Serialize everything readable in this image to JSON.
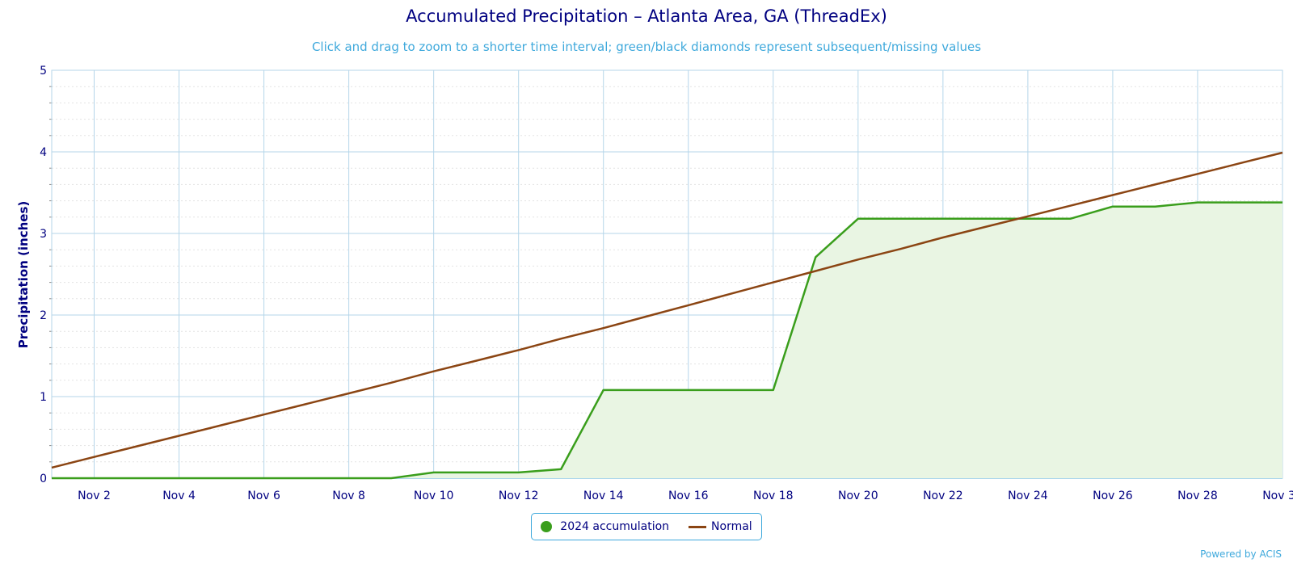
{
  "chart_data": {
    "type": "area",
    "title": "Accumulated Precipitation – Atlanta Area, GA (ThreadEx)",
    "subtitle": "Click and drag to zoom to a shorter time interval; green/black diamonds represent subsequent/missing values",
    "ylabel": "Precipitation (inches)",
    "ylim": [
      0,
      5
    ],
    "yticks": [
      "0",
      "1",
      "2",
      "3",
      "4",
      "5"
    ],
    "xlim": [
      1,
      30
    ],
    "xticks": [
      {
        "day": 2,
        "label": "Nov 2"
      },
      {
        "day": 4,
        "label": "Nov 4"
      },
      {
        "day": 6,
        "label": "Nov 6"
      },
      {
        "day": 8,
        "label": "Nov 8"
      },
      {
        "day": 10,
        "label": "Nov 10"
      },
      {
        "day": 12,
        "label": "Nov 12"
      },
      {
        "day": 14,
        "label": "Nov 14"
      },
      {
        "day": 16,
        "label": "Nov 16"
      },
      {
        "day": 18,
        "label": "Nov 18"
      },
      {
        "day": 20,
        "label": "Nov 20"
      },
      {
        "day": 22,
        "label": "Nov 22"
      },
      {
        "day": 24,
        "label": "Nov 24"
      },
      {
        "day": 26,
        "label": "Nov 26"
      },
      {
        "day": 28,
        "label": "Nov 28"
      },
      {
        "day": 30,
        "label": "Nov 30"
      }
    ],
    "grid": true,
    "legend_position": "bottom-center",
    "series": [
      {
        "name": "2024 accumulation",
        "color": "#3a9e1c",
        "fill": "#e9f5e3",
        "x": [
          1,
          2,
          3,
          4,
          5,
          6,
          7,
          8,
          9,
          10,
          11,
          12,
          13,
          14,
          15,
          16,
          17,
          18,
          19,
          20,
          21,
          22,
          23,
          24,
          25,
          26,
          27,
          28,
          29,
          30
        ],
        "values": [
          0,
          0,
          0,
          0,
          0,
          0,
          0,
          0,
          0,
          0.07,
          0.07,
          0.07,
          0.11,
          1.08,
          1.08,
          1.08,
          1.08,
          1.08,
          2.71,
          3.18,
          3.18,
          3.18,
          3.18,
          3.18,
          3.18,
          3.33,
          3.33,
          3.38,
          3.38,
          3.38
        ]
      },
      {
        "name": "Normal",
        "color": "#8b4513",
        "x": [
          1,
          2,
          3,
          4,
          5,
          6,
          7,
          8,
          9,
          10,
          11,
          12,
          13,
          14,
          15,
          16,
          17,
          18,
          19,
          20,
          21,
          22,
          23,
          24,
          25,
          26,
          27,
          28,
          29,
          30
        ],
        "values": [
          0.13,
          0.26,
          0.39,
          0.52,
          0.65,
          0.78,
          0.91,
          1.04,
          1.17,
          1.31,
          1.44,
          1.57,
          1.71,
          1.84,
          1.98,
          2.12,
          2.26,
          2.4,
          2.54,
          2.68,
          2.81,
          2.95,
          3.08,
          3.21,
          3.34,
          3.47,
          3.6,
          3.73,
          3.86,
          3.99
        ]
      }
    ]
  },
  "credits": "Powered by ACIS"
}
